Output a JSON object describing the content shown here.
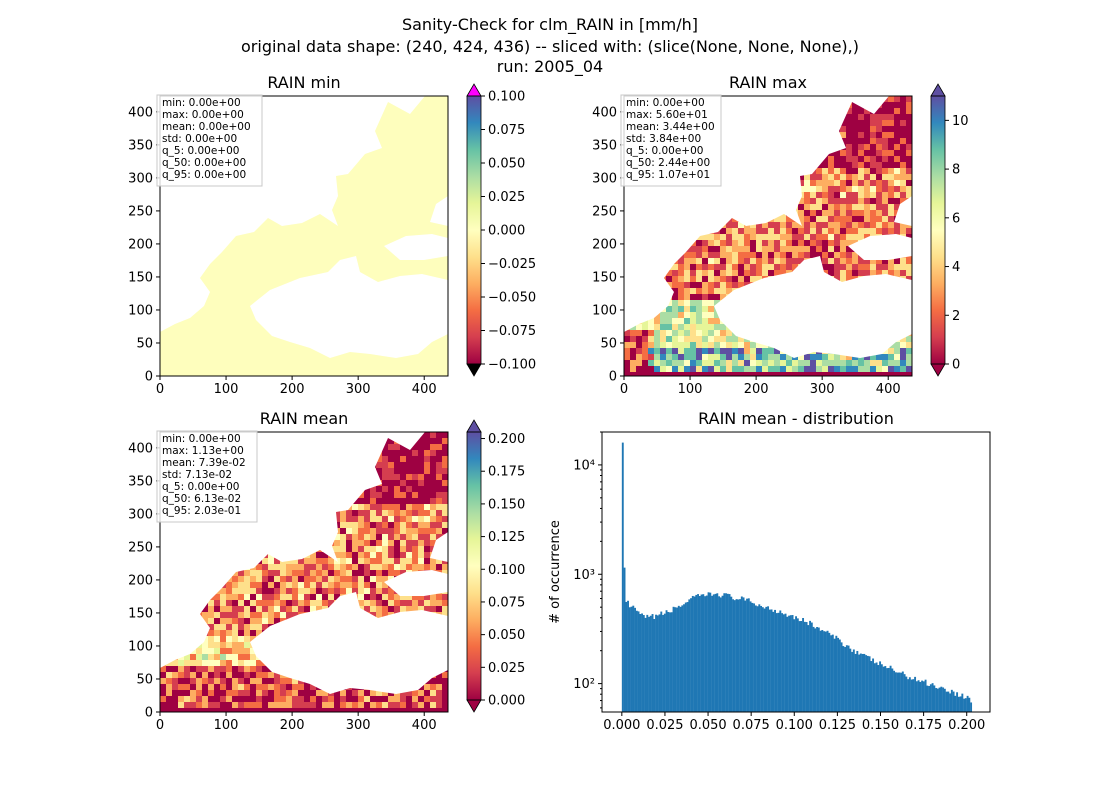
{
  "figure": {
    "title_lines": [
      "Sanity-Check for clm_RAIN in [mm/h]",
      "original data shape: (240, 424, 436) -- sliced with: (slice(None, None, None),)",
      "run: 2005_04"
    ]
  },
  "chart_data": [
    {
      "type": "heatmap",
      "title": "RAIN min",
      "xlim": [
        0,
        436
      ],
      "ylim": [
        0,
        424
      ],
      "xticks": [
        "0",
        "100",
        "200",
        "300",
        "400"
      ],
      "yticks": [
        "0",
        "50",
        "100",
        "150",
        "200",
        "250",
        "300",
        "350",
        "400"
      ],
      "field": "uniform",
      "colorbar": {
        "cmap": "Spectral",
        "vmin": -0.1,
        "vmax": 0.1,
        "ticks": [
          "0.100",
          "0.075",
          "0.050",
          "0.025",
          "0.000",
          "−0.025",
          "−0.050",
          "−0.075",
          "−0.100"
        ],
        "over_color": "#ff00ff",
        "under_color": "#000000"
      },
      "stats": [
        "min: 0.00e+00",
        "max: 0.00e+00",
        "mean: 0.00e+00",
        "std: 0.00e+00",
        "q_5: 0.00e+00",
        "q_50: 0.00e+00",
        "q_95: 0.00e+00"
      ]
    },
    {
      "type": "heatmap",
      "title": "RAIN max",
      "xlim": [
        0,
        436
      ],
      "ylim": [
        0,
        424
      ],
      "xticks": [
        "0",
        "100",
        "200",
        "300",
        "400"
      ],
      "yticks": [
        "0",
        "50",
        "100",
        "150",
        "200",
        "250",
        "300",
        "350",
        "400"
      ],
      "field": "noisy",
      "colorbar": {
        "cmap": "Spectral",
        "vmin": 0,
        "vmax": 11,
        "ticks": [
          "10",
          "8",
          "6",
          "4",
          "2",
          "0"
        ]
      },
      "stats": [
        "min: 0.00e+00",
        "max: 5.60e+01",
        "mean: 3.44e+00",
        "std: 3.84e+00",
        "q_5: 0.00e+00",
        "q_50: 2.44e+00",
        "q_95: 1.07e+01"
      ]
    },
    {
      "type": "heatmap",
      "title": "RAIN mean",
      "xlim": [
        0,
        436
      ],
      "ylim": [
        0,
        424
      ],
      "xticks": [
        "0",
        "100",
        "200",
        "300",
        "400"
      ],
      "yticks": [
        "0",
        "50",
        "100",
        "150",
        "200",
        "250",
        "300",
        "350",
        "400"
      ],
      "field": "noisy",
      "colorbar": {
        "cmap": "Spectral",
        "vmin": 0,
        "vmax": 0.205,
        "ticks": [
          "0.200",
          "0.175",
          "0.150",
          "0.125",
          "0.100",
          "0.075",
          "0.050",
          "0.025",
          "0.000"
        ]
      },
      "stats": [
        "min: 0.00e+00",
        "max: 1.13e+00",
        "mean: 7.39e-02",
        "std: 7.13e-02",
        "q_5: 0.00e+00",
        "q_50: 6.13e-02",
        "q_95: 2.03e-01"
      ]
    },
    {
      "type": "bar",
      "title": "RAIN mean - distribution",
      "ylabel": "# of occurrence",
      "yscale": "log",
      "xlim": [
        -0.0115,
        0.2135
      ],
      "ylim": [
        55,
        20000
      ],
      "xticks": [
        "0.000",
        "0.025",
        "0.050",
        "0.075",
        "0.100",
        "0.125",
        "0.150",
        "0.175",
        "0.200"
      ],
      "yticks": [
        "10²",
        "10³",
        "10⁴"
      ],
      "color": "#1f77b4",
      "bins": 200,
      "bin_range": [
        0,
        0.203
      ],
      "profile_x": [
        0.0,
        0.001,
        0.002,
        0.004,
        0.008,
        0.012,
        0.016,
        0.02,
        0.025,
        0.03,
        0.035,
        0.04,
        0.045,
        0.05,
        0.055,
        0.06,
        0.065,
        0.07,
        0.075,
        0.08,
        0.085,
        0.09,
        0.095,
        0.1,
        0.105,
        0.11,
        0.115,
        0.12,
        0.125,
        0.13,
        0.135,
        0.14,
        0.145,
        0.15,
        0.155,
        0.16,
        0.165,
        0.17,
        0.175,
        0.18,
        0.185,
        0.19,
        0.195,
        0.2,
        0.203
      ],
      "profile_y": [
        16000,
        1150,
        620,
        520,
        470,
        410,
        400,
        420,
        440,
        480,
        530,
        590,
        630,
        650,
        660,
        645,
        610,
        590,
        560,
        520,
        490,
        465,
        440,
        410,
        380,
        350,
        315,
        285,
        255,
        225,
        200,
        180,
        165,
        150,
        140,
        128,
        118,
        110,
        105,
        98,
        92,
        86,
        80,
        75,
        70
      ]
    }
  ]
}
